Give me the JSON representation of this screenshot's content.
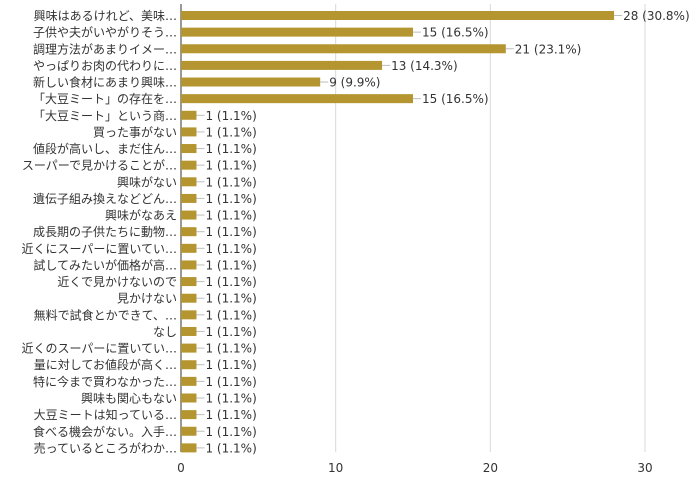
{
  "chart_data": {
    "type": "bar",
    "orientation": "horizontal",
    "bar_color": "#b5952f",
    "grid_color": "#d9d9d9",
    "xlim": [
      0,
      30
    ],
    "x_ticks": [
      0,
      10,
      20,
      30
    ],
    "grid": "vertical",
    "categories": [
      "興味はあるけれど、美味…",
      "子供や夫がいやがりそう…",
      "調理方法があまりイメー…",
      "やっぱりお肉の代わりに…",
      "新しい食材にあまり興味…",
      "「大豆ミート」の存在を…",
      "「大豆ミート」という商…",
      "買った事がない",
      "値段が高いし、まだ住ん…",
      "スーパーで見かけることが…",
      "興味がない",
      "遺伝子組み換えなどどん…",
      "興味がなあえ",
      "成長期の子供たちに動物…",
      "近くにスーパーに置いてい…",
      "試してみたいが価格が高…",
      "近くで見かけないので",
      "見かけない",
      "無料で試食とかできて、…",
      "なし",
      "近くのスーパーに置いてい…",
      "量に対してお値段が高く…",
      "特に今まで買わなかった…",
      "興味も関心もない",
      "大豆ミートは知っている…",
      "食べる機会がない。入手…",
      "売っているところがわか…"
    ],
    "values": [
      28,
      15,
      21,
      13,
      9,
      15,
      1,
      1,
      1,
      1,
      1,
      1,
      1,
      1,
      1,
      1,
      1,
      1,
      1,
      1,
      1,
      1,
      1,
      1,
      1,
      1,
      1
    ],
    "value_labels": [
      "28 (30.8%)",
      "15 (16.5%)",
      "21 (23.1%)",
      "13 (14.3%)",
      "9 (9.9%)",
      "15 (16.5%)",
      "1 (1.1%)",
      "1 (1.1%)",
      "1 (1.1%)",
      "1 (1.1%)",
      "1 (1.1%)",
      "1 (1.1%)",
      "1 (1.1%)",
      "1 (1.1%)",
      "1 (1.1%)",
      "1 (1.1%)",
      "1 (1.1%)",
      "1 (1.1%)",
      "1 (1.1%)",
      "1 (1.1%)",
      "1 (1.1%)",
      "1 (1.1%)",
      "1 (1.1%)",
      "1 (1.1%)",
      "1 (1.1%)",
      "1 (1.1%)",
      "1 (1.1%)"
    ]
  }
}
